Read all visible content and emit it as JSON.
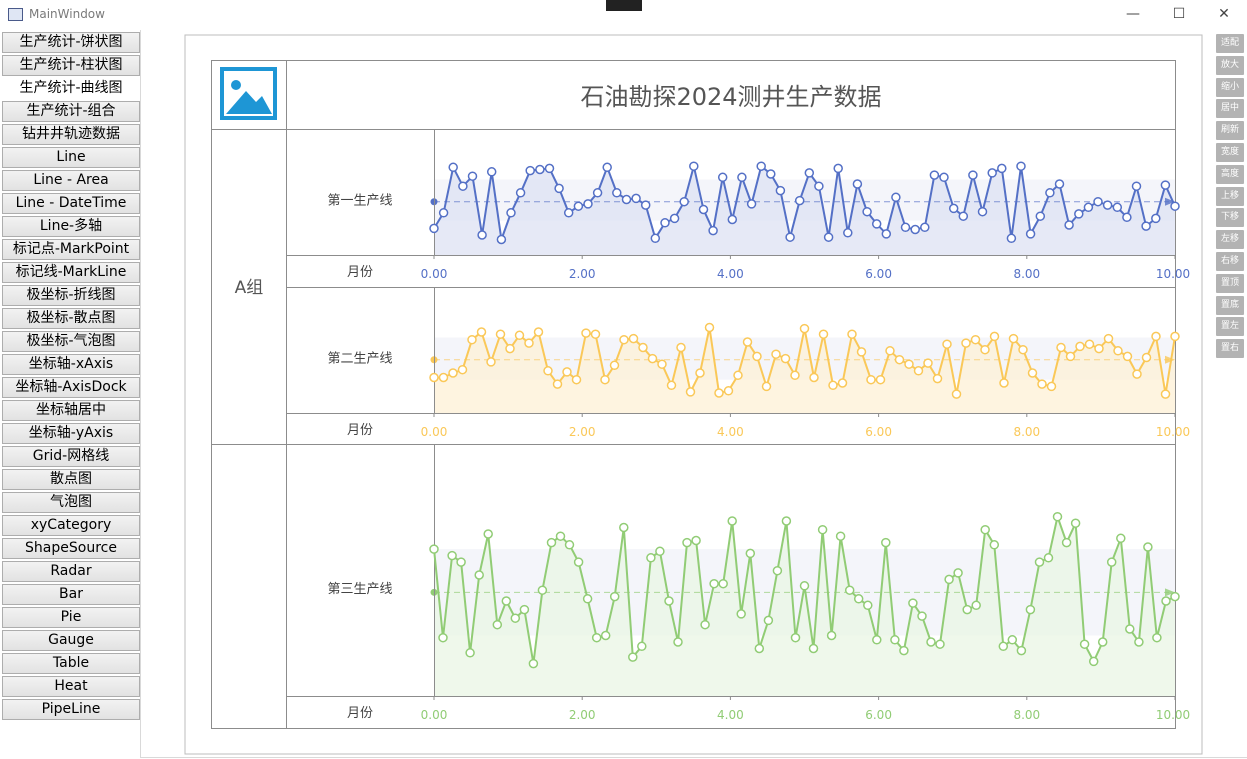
{
  "window": {
    "title": "MainWindow",
    "minimize": "—",
    "maximize": "☐",
    "close": "✕"
  },
  "sidebar": {
    "items": [
      {
        "label": "生产统计-饼状图"
      },
      {
        "label": "生产统计-柱状图"
      },
      {
        "label": "生产统计-曲线图"
      },
      {
        "label": "生产统计-组合"
      },
      {
        "label": "钻井井轨迹数据"
      },
      {
        "label": "Line"
      },
      {
        "label": "Line - Area"
      },
      {
        "label": "Line - DateTime"
      },
      {
        "label": "Line-多轴"
      },
      {
        "label": "标记点-MarkPoint"
      },
      {
        "label": "标记线-MarkLine"
      },
      {
        "label": "极坐标-折线图"
      },
      {
        "label": "极坐标-散点图"
      },
      {
        "label": "极坐标-气泡图"
      },
      {
        "label": "坐标轴-xAxis"
      },
      {
        "label": "坐标轴-AxisDock"
      },
      {
        "label": "坐标轴居中"
      },
      {
        "label": "坐标轴-yAxis"
      },
      {
        "label": "Grid-网格线"
      },
      {
        "label": "散点图"
      },
      {
        "label": "气泡图"
      },
      {
        "label": "xyCategory"
      },
      {
        "label": "ShapeSource"
      },
      {
        "label": "Radar"
      },
      {
        "label": "Bar"
      },
      {
        "label": "Pie"
      },
      {
        "label": "Gauge"
      },
      {
        "label": "Table"
      },
      {
        "label": "Heat"
      },
      {
        "label": "PipeLine"
      }
    ],
    "selected_index": 2
  },
  "toolbar": {
    "buttons": [
      "适配",
      "放大",
      "缩小",
      "居中",
      "刷新",
      "宽度",
      "高度",
      "上移",
      "下移",
      "左移",
      "右移",
      "置顶",
      "置底",
      "置左",
      "置右"
    ]
  },
  "chart_data": {
    "type": "line",
    "title": "石油勘探2024测井生产数据",
    "groups": [
      {
        "name": "A组",
        "tracks": [
          {
            "name": "第一生产线",
            "xlabel": "月份",
            "color": "#5470c6",
            "area_color": "#dde2f3",
            "xlim": [
              0,
              10
            ],
            "ticks": [
              "0.00",
              "2.00",
              "4.00",
              "6.00",
              "8.00",
              "10.00"
            ],
            "ylim": [
              0,
              100
            ],
            "mean": 48,
            "band": [
              31,
              68
            ],
            "values": [
              24,
              38,
              79,
              62,
              71,
              18,
              75,
              14,
              38,
              56,
              76,
              77,
              78,
              60,
              38,
              44,
              46,
              56,
              79,
              56,
              50,
              51,
              45,
              15,
              29,
              33,
              48,
              80,
              41,
              22,
              70,
              32,
              70,
              46,
              80,
              73,
              58,
              16,
              49,
              74,
              62,
              16,
              78,
              20,
              64,
              39,
              28,
              19,
              52,
              25,
              23,
              25,
              72,
              70,
              42,
              35,
              72,
              39,
              74,
              78,
              15,
              80,
              19,
              35,
              56,
              64,
              27,
              37,
              43,
              48,
              45,
              43,
              34,
              62,
              26,
              33,
              63,
              44
            ]
          },
          {
            "name": "第二生产线",
            "xlabel": "月份",
            "color": "#fac858",
            "area_color": "#fdf0d6",
            "xlim": [
              0,
              10
            ],
            "ticks": [
              "0.00",
              "2.00",
              "4.00",
              "6.00",
              "8.00",
              "10.00"
            ],
            "ylim": [
              0,
              100
            ],
            "mean": 48,
            "band": [
              30,
              68
            ],
            "values": [
              32,
              32,
              36,
              39,
              66,
              73,
              46,
              71,
              58,
              70,
              63,
              73,
              38,
              26,
              37,
              30,
              72,
              71,
              30,
              43,
              66,
              67,
              59,
              49,
              44,
              25,
              59,
              19,
              36,
              77,
              18,
              20,
              34,
              64,
              51,
              24,
              53,
              49,
              34,
              76,
              32,
              71,
              25,
              27,
              71,
              55,
              30,
              30,
              56,
              48,
              44,
              38,
              45,
              31,
              62,
              17,
              63,
              66,
              57,
              69,
              27,
              67,
              57,
              36,
              26,
              24,
              59,
              51,
              60,
              62,
              58,
              67,
              56,
              51,
              35,
              50,
              69,
              17,
              69
            ]
          },
          {
            "name": "第三生产线",
            "xlabel": "月份",
            "color": "#91cc75",
            "area_color": "#e9f5e4",
            "xlim": [
              0,
              10
            ],
            "ticks": [
              "0.00",
              "2.00",
              "4.00",
              "6.00",
              "8.00",
              "10.00"
            ],
            "ylim": [
              0,
              100
            ],
            "mean": 48,
            "band": [
              28,
              68
            ],
            "values": [
              68,
              27,
              65,
              62,
              20,
              56,
              75,
              33,
              44,
              36,
              40,
              15,
              49,
              71,
              74,
              70,
              62,
              45,
              27,
              28,
              46,
              78,
              18,
              23,
              64,
              67,
              44,
              25,
              71,
              72,
              33,
              52,
              52,
              81,
              38,
              66,
              22,
              35,
              58,
              81,
              27,
              51,
              22,
              77,
              28,
              74,
              49,
              45,
              42,
              26,
              71,
              26,
              21,
              43,
              37,
              25,
              24,
              54,
              57,
              40,
              42,
              77,
              70,
              23,
              26,
              21,
              40,
              62,
              64,
              83,
              71,
              80,
              24,
              16,
              25,
              62,
              73,
              31,
              25,
              69,
              27,
              44,
              46
            ]
          }
        ]
      }
    ]
  }
}
